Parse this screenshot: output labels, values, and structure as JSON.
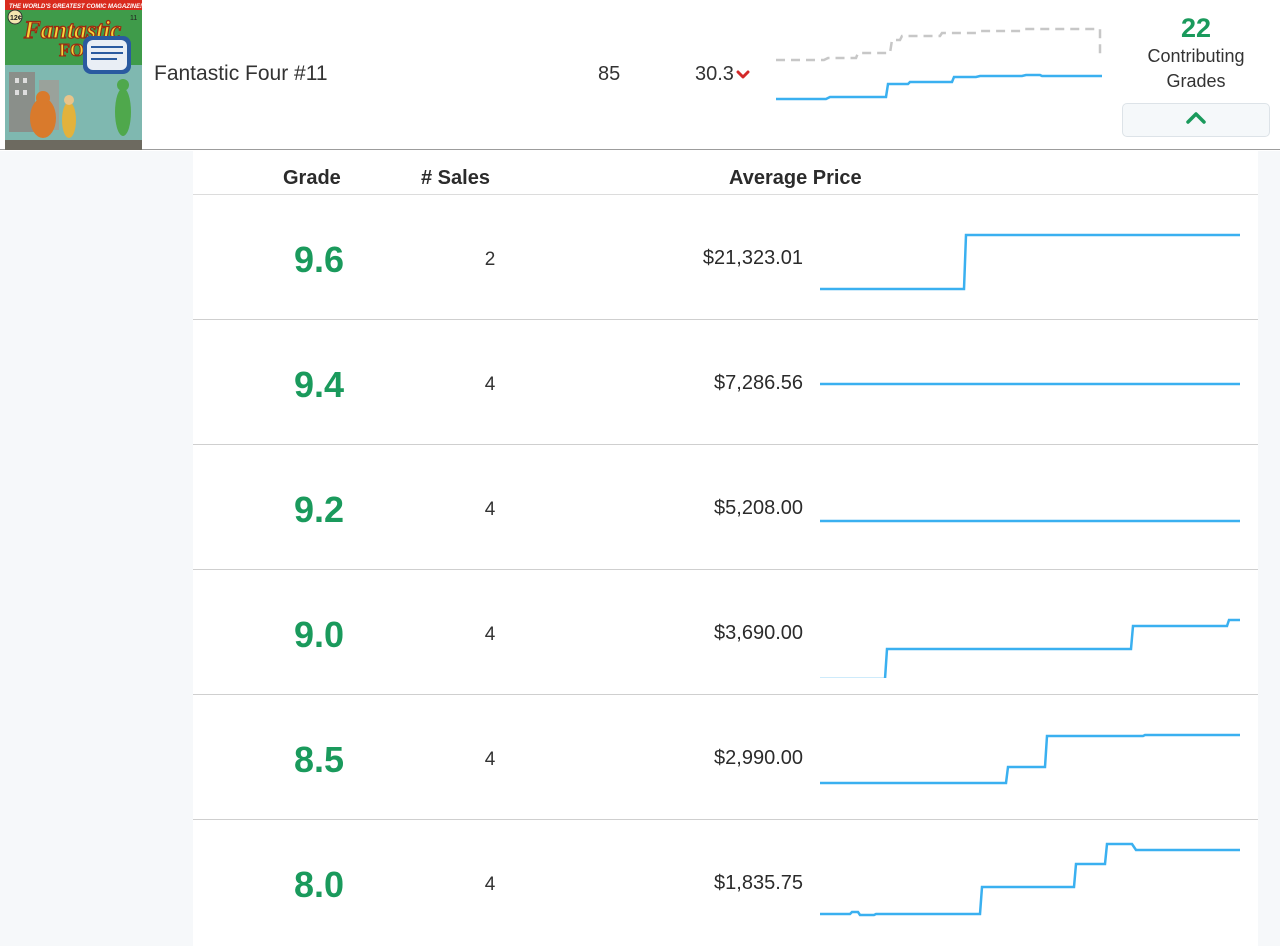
{
  "comic": {
    "title": "Fantastic Four #11",
    "score": "85",
    "trend_value": "30.3",
    "trend_direction": "down",
    "cover": {
      "masthead": "THE WORLD'S GREATEST COMIC MAGAZINE!",
      "logo_top": "Fantastic",
      "logo_bottom": "FOUR",
      "price": "12¢",
      "issue": "11"
    }
  },
  "contributing": {
    "count": "22",
    "label": "Contributing Grades"
  },
  "colors": {
    "accent_green": "#1a9a5c",
    "spark_blue": "#3ab0f0",
    "spark_gray": "#c7c7c7",
    "trend_red": "#d42a2a"
  },
  "columns": {
    "grade": "Grade",
    "sales": "# Sales",
    "price": "Average Price"
  },
  "grades": [
    {
      "grade": "9.6",
      "sales": "2",
      "price": "$21,323.01"
    },
    {
      "grade": "9.4",
      "sales": "4",
      "price": "$7,286.56"
    },
    {
      "grade": "9.2",
      "sales": "4",
      "price": "$5,208.00"
    },
    {
      "grade": "9.0",
      "sales": "4",
      "price": "$3,690.00"
    },
    {
      "grade": "8.5",
      "sales": "4",
      "price": "$2,990.00"
    },
    {
      "grade": "8.0",
      "sales": "4",
      "price": "$1,835.75"
    }
  ]
}
